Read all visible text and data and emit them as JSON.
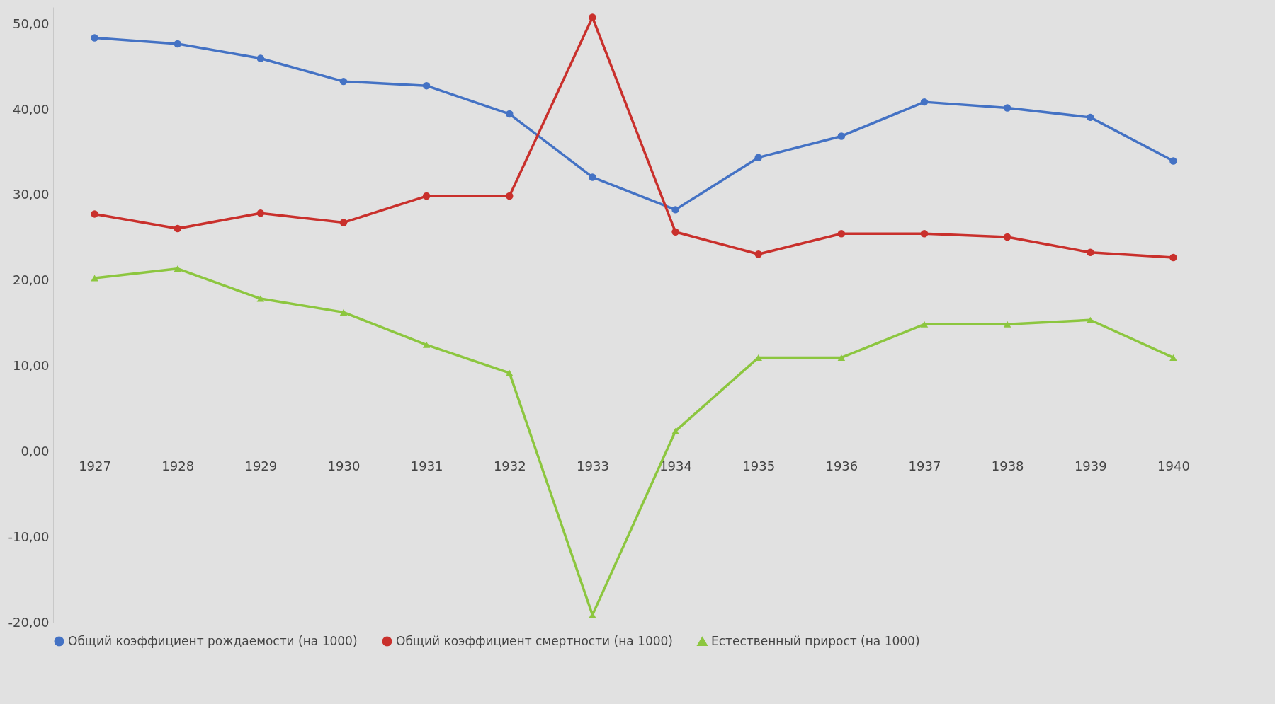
{
  "chart_data": {
    "type": "line",
    "categories": [
      "1927",
      "1928",
      "1929",
      "1930",
      "1931",
      "1932",
      "1933",
      "1934",
      "1935",
      "1936",
      "1937",
      "1938",
      "1939",
      "1940"
    ],
    "series": [
      {
        "name": "Общий коэффициент рождаемости (на 1000)",
        "color": "#4472c4",
        "marker": "circle",
        "values": [
          48.4,
          47.7,
          46.0,
          43.3,
          42.8,
          39.5,
          32.1,
          28.3,
          34.4,
          36.9,
          40.9,
          40.2,
          39.1,
          34.0
        ]
      },
      {
        "name": "Общий коэффициент смертности (на 1000)",
        "color": "#c9302c",
        "marker": "circle",
        "values": [
          27.8,
          26.1,
          27.9,
          26.8,
          29.9,
          29.9,
          50.8,
          25.7,
          23.1,
          25.5,
          25.5,
          25.1,
          23.3,
          22.7
        ]
      },
      {
        "name": "Естественный прирост (на 1000)",
        "color": "#8cc63f",
        "marker": "triangle",
        "values": [
          20.3,
          21.4,
          17.9,
          16.3,
          12.5,
          9.2,
          -19.1,
          2.4,
          11.0,
          11.0,
          14.9,
          14.9,
          15.4,
          11.0
        ]
      }
    ],
    "yticks": [
      {
        "value": -20,
        "label": "-20,00"
      },
      {
        "value": -10,
        "label": "-10,00"
      },
      {
        "value": 0,
        "label": "0,00"
      },
      {
        "value": 10,
        "label": "10,00"
      },
      {
        "value": 20,
        "label": "20,00"
      },
      {
        "value": 30,
        "label": "30,00"
      },
      {
        "value": 40,
        "label": "40,00"
      },
      {
        "value": 50,
        "label": "50,00"
      }
    ],
    "ylim": [
      -20,
      52
    ],
    "legend": "bottom",
    "line_style": "solid"
  }
}
